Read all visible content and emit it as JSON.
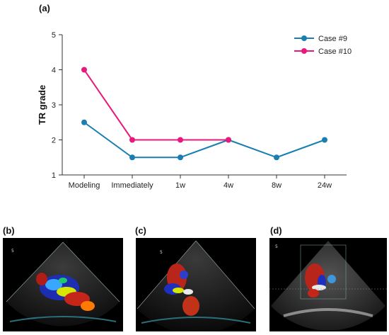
{
  "figure": {
    "panel_a": "(a)",
    "panel_b": "(b)",
    "panel_c": "(c)",
    "panel_d": "(d)"
  },
  "chart_data": {
    "type": "line",
    "title": "",
    "xlabel": "",
    "ylabel": "TR grade",
    "categories": [
      "Modeling",
      "Immediately",
      "1w",
      "4w",
      "8w",
      "24w"
    ],
    "ylim": [
      1,
      5
    ],
    "yticks": [
      "1",
      "2",
      "3",
      "4",
      "5"
    ],
    "grid": false,
    "legend_position": "top-right",
    "series": [
      {
        "name": "Case #9",
        "color": "#1a7fb0",
        "values": [
          2.5,
          1.5,
          1.5,
          2,
          1.5,
          2
        ]
      },
      {
        "name": "Case #10",
        "color": "#e8197c",
        "values": [
          4,
          2,
          2,
          2,
          null,
          null
        ]
      }
    ]
  },
  "echo_images": [
    {
      "id": "b",
      "scale_mark": "5"
    },
    {
      "id": "c",
      "scale_mark": "5"
    },
    {
      "id": "d",
      "scale_mark": "5"
    }
  ]
}
